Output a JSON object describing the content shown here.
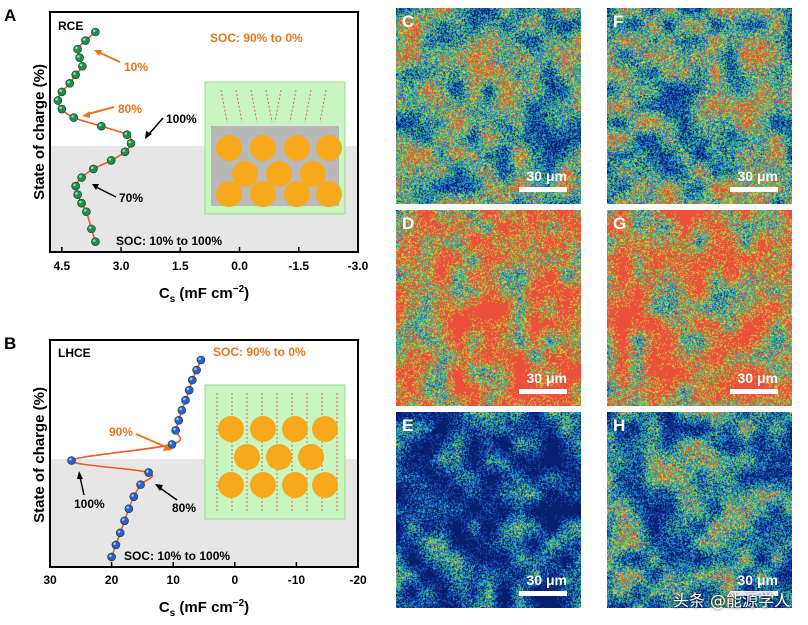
{
  "panel_labels": {
    "a": "A",
    "b": "B"
  },
  "watermark": "头条 @能源学人",
  "chart_data": [
    {
      "type": "line",
      "panel": "A",
      "title": "",
      "corner_label": "RCE",
      "xlabel": "C",
      "xlabel_sub": "s",
      "xlabel_unit": " (mF cm",
      "xlabel_sup": "−2",
      "xlabel_close": ")",
      "ylabel": "State of charge (%)",
      "x_reversed": true,
      "xlim": [
        4.8,
        -3.0
      ],
      "ylim": [
        0,
        100
      ],
      "x_ticks": [
        4.5,
        3.0,
        1.5,
        0.0,
        -1.5,
        -3.0
      ],
      "x_tick_labels": [
        "4.5",
        "3.0",
        "1.5",
        "0.0",
        "-1.5",
        "-3.0"
      ],
      "shaded_region": "lower half",
      "series": [
        {
          "color": "#f05a2a",
          "marker_color": "#1f8f4e",
          "x": [
            3.65,
            3.9,
            4.1,
            4.05,
            3.98,
            4.15,
            4.3,
            4.5,
            4.6,
            4.5,
            4.2,
            3.5,
            2.85,
            2.75,
            2.9,
            3.25,
            3.7,
            4.0,
            4.15,
            4.1,
            4.0,
            3.88,
            3.75,
            3.65
          ],
          "y": [
            100,
            96,
            92,
            88,
            84,
            80,
            76,
            72,
            68,
            64,
            60,
            56,
            52,
            48,
            44,
            40,
            36,
            32,
            28,
            24,
            20,
            16,
            8,
            2
          ]
        }
      ],
      "annotations": [
        {
          "text": "SOC: 90% to 0%",
          "color": "#e8761e"
        },
        {
          "text": "10%",
          "color": "#e8761e"
        },
        {
          "text": "80%",
          "color": "#e8761e"
        },
        {
          "text": "100%",
          "color": "#000000"
        },
        {
          "text": "70%",
          "color": "#000000"
        },
        {
          "text": "SOC: 10% to 100%",
          "color": "#000000"
        }
      ]
    },
    {
      "type": "line",
      "panel": "B",
      "title": "",
      "corner_label": "LHCE",
      "xlabel": "C",
      "xlabel_sub": "s",
      "xlabel_unit": " (mF cm",
      "xlabel_sup": "−2",
      "xlabel_close": ")",
      "ylabel": "State of charge (%)",
      "x_reversed": true,
      "xlim": [
        30,
        -20
      ],
      "ylim": [
        0,
        100
      ],
      "x_ticks": [
        30,
        20,
        10,
        0,
        -10,
        -20
      ],
      "x_tick_labels": [
        "30",
        "20",
        "10",
        "0",
        "-10",
        "-20"
      ],
      "shaded_region": "lower half",
      "series": [
        {
          "color": "#f05a2a",
          "marker_color": "#2b5fd1",
          "x": [
            5.5,
            6.2,
            6.9,
            7.4,
            8.0,
            8.6,
            9.1,
            9.6,
            10.2,
            26.5,
            14.0,
            15.3,
            16.4,
            17.2,
            17.9,
            18.6,
            19.3,
            20.0
          ],
          "y": [
            100,
            95,
            90,
            85,
            80,
            75,
            70,
            65,
            58,
            50,
            44,
            38,
            32,
            26,
            20,
            14,
            8,
            2
          ]
        }
      ],
      "annotations": [
        {
          "text": "SOC: 90% to 0%",
          "color": "#e8761e"
        },
        {
          "text": "90%",
          "color": "#e8761e"
        },
        {
          "text": "100%",
          "color": "#000000"
        },
        {
          "text": "80%",
          "color": "#000000"
        },
        {
          "text": "SOC: 10% to 100%",
          "color": "#000000"
        }
      ]
    }
  ],
  "maps": [
    {
      "letter": "C",
      "scale_bar": "30 μm",
      "level": 0.55
    },
    {
      "letter": "F",
      "scale_bar": "30 μm",
      "level": 0.55
    },
    {
      "letter": "D",
      "scale_bar": "30 μm",
      "level": 0.85
    },
    {
      "letter": "G",
      "scale_bar": "30 μm",
      "level": 0.8
    },
    {
      "letter": "E",
      "scale_bar": "30 μm",
      "level": 0.2
    },
    {
      "letter": "H",
      "scale_bar": "30 μm",
      "level": 0.4
    }
  ],
  "colors": {
    "shade": "#e6e6e6",
    "inset_bg": "#c8f5c0",
    "particle": "#f7a81b",
    "binder": "#b8b8b8",
    "arrow": "#e8761e"
  }
}
